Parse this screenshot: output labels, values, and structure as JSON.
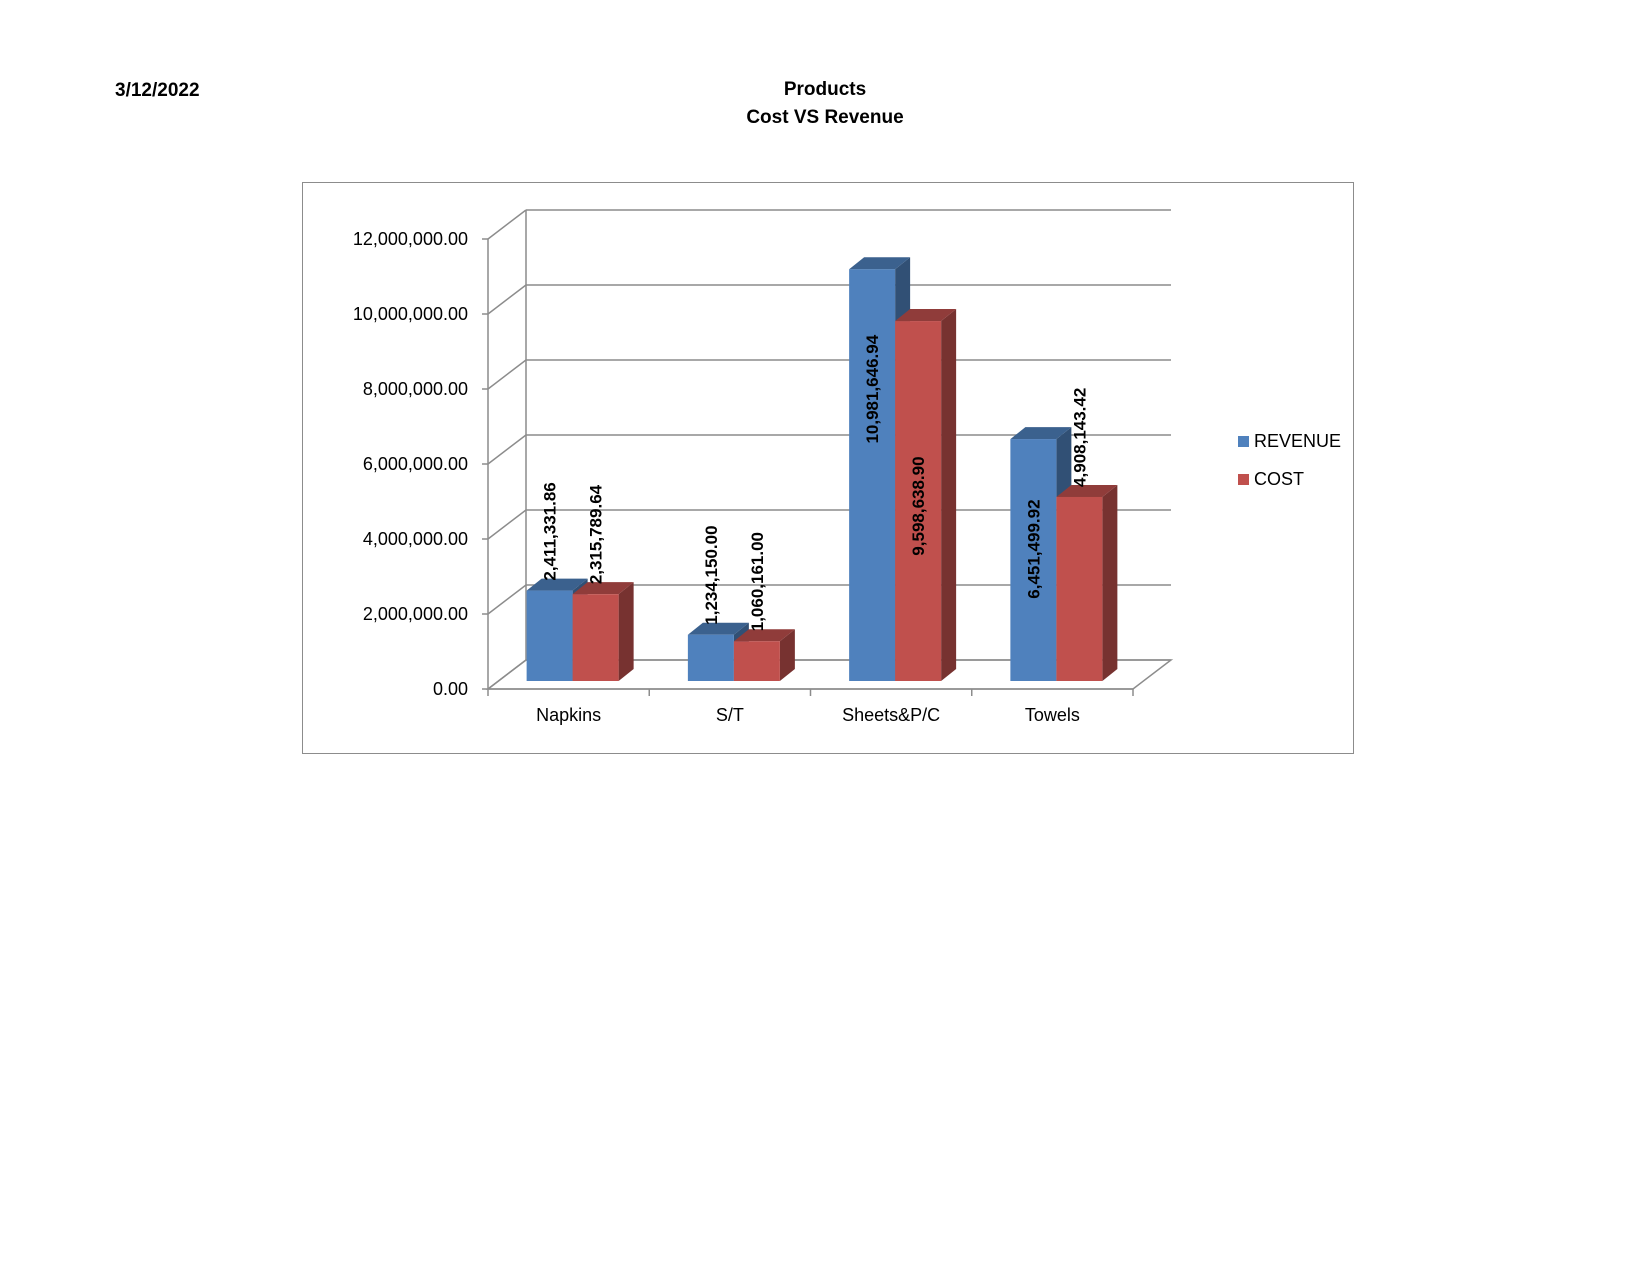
{
  "header": {
    "date": "3/12/2022",
    "title_line1": "Products",
    "title_line2": "Cost VS Revenue"
  },
  "colors": {
    "revenue": "#4f81bd",
    "cost": "#c0504d"
  },
  "chart_data": {
    "type": "bar",
    "categories": [
      "Napkins",
      "S/T",
      "Sheets&P/C",
      "Towels"
    ],
    "series": [
      {
        "name": "REVENUE",
        "values": [
          2411331.86,
          1234150.0,
          10981646.94,
          6451499.92
        ],
        "labels": [
          "2,411,331.86",
          "1,234,150.00",
          "10,981,646.94",
          "6,451,499.92"
        ]
      },
      {
        "name": "COST",
        "values": [
          2315789.64,
          1060161.0,
          9598638.9,
          4908143.42
        ],
        "labels": [
          "2,315,789.64",
          "1,060,161.00",
          "9,598,638.90",
          "4,908,143.42"
        ]
      }
    ],
    "ylim": [
      0,
      12000000
    ],
    "yticks": [
      0,
      2000000,
      4000000,
      6000000,
      8000000,
      10000000,
      12000000
    ],
    "ytick_labels": [
      "0.00",
      "2,000,000.00",
      "4,000,000.00",
      "6,000,000.00",
      "8,000,000.00",
      "10,000,000.00",
      "12,000,000.00"
    ],
    "grid": true,
    "legend": "right",
    "style": "3d-column"
  }
}
